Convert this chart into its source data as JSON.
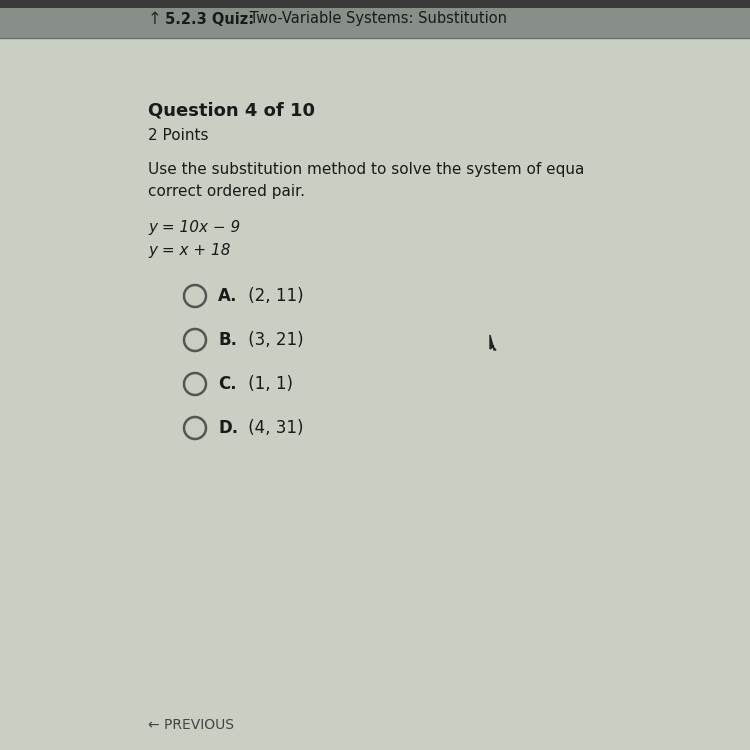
{
  "header_text": "5.2.3 Quiz:  Two-Variable Systems: Substitution",
  "question_label": "Question 4 of 10",
  "points_label": "2 Points",
  "instruction_line1": "Use the substitution method to solve the system of equa",
  "instruction_line2": "correct ordered pair.",
  "eq1": "y = 10x − 9",
  "eq2": "y = x + 18",
  "options": [
    {
      "letter": "A.",
      "text": " (2, 11)"
    },
    {
      "letter": "B.",
      "text": " (3, 21)"
    },
    {
      "letter": "C.",
      "text": " (1, 1)"
    },
    {
      "letter": "D.",
      "text": " (4, 31)"
    }
  ],
  "bg_color": "#c9d0c3",
  "header_bg": "#909590",
  "text_color": "#1a1a1a",
  "header_text_color": "#2a2a2a",
  "circle_color": "#555555",
  "prev_text": "← PREVIOUS"
}
